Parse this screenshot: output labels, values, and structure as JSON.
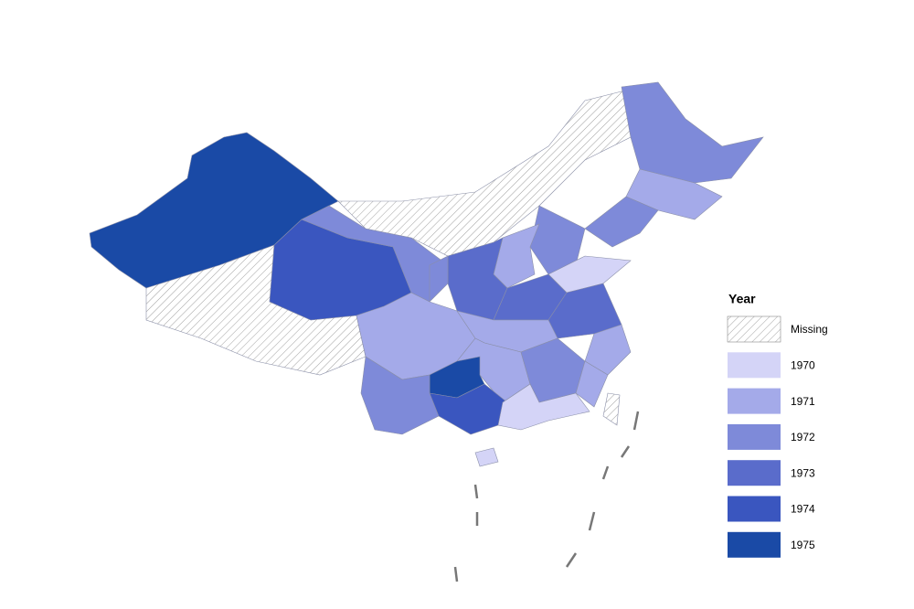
{
  "legend": {
    "title": "Year",
    "items": [
      {
        "label": "Missing",
        "fill": "hatch"
      },
      {
        "label": "1970",
        "color": "#d4d4f7"
      },
      {
        "label": "1971",
        "color": "#a4aae9"
      },
      {
        "label": "1972",
        "color": "#7e8ad9"
      },
      {
        "label": "1973",
        "color": "#5a6ccb"
      },
      {
        "label": "1974",
        "color": "#3a56bf"
      },
      {
        "label": "1975",
        "color": "#1a4aa6"
      }
    ]
  }
}
